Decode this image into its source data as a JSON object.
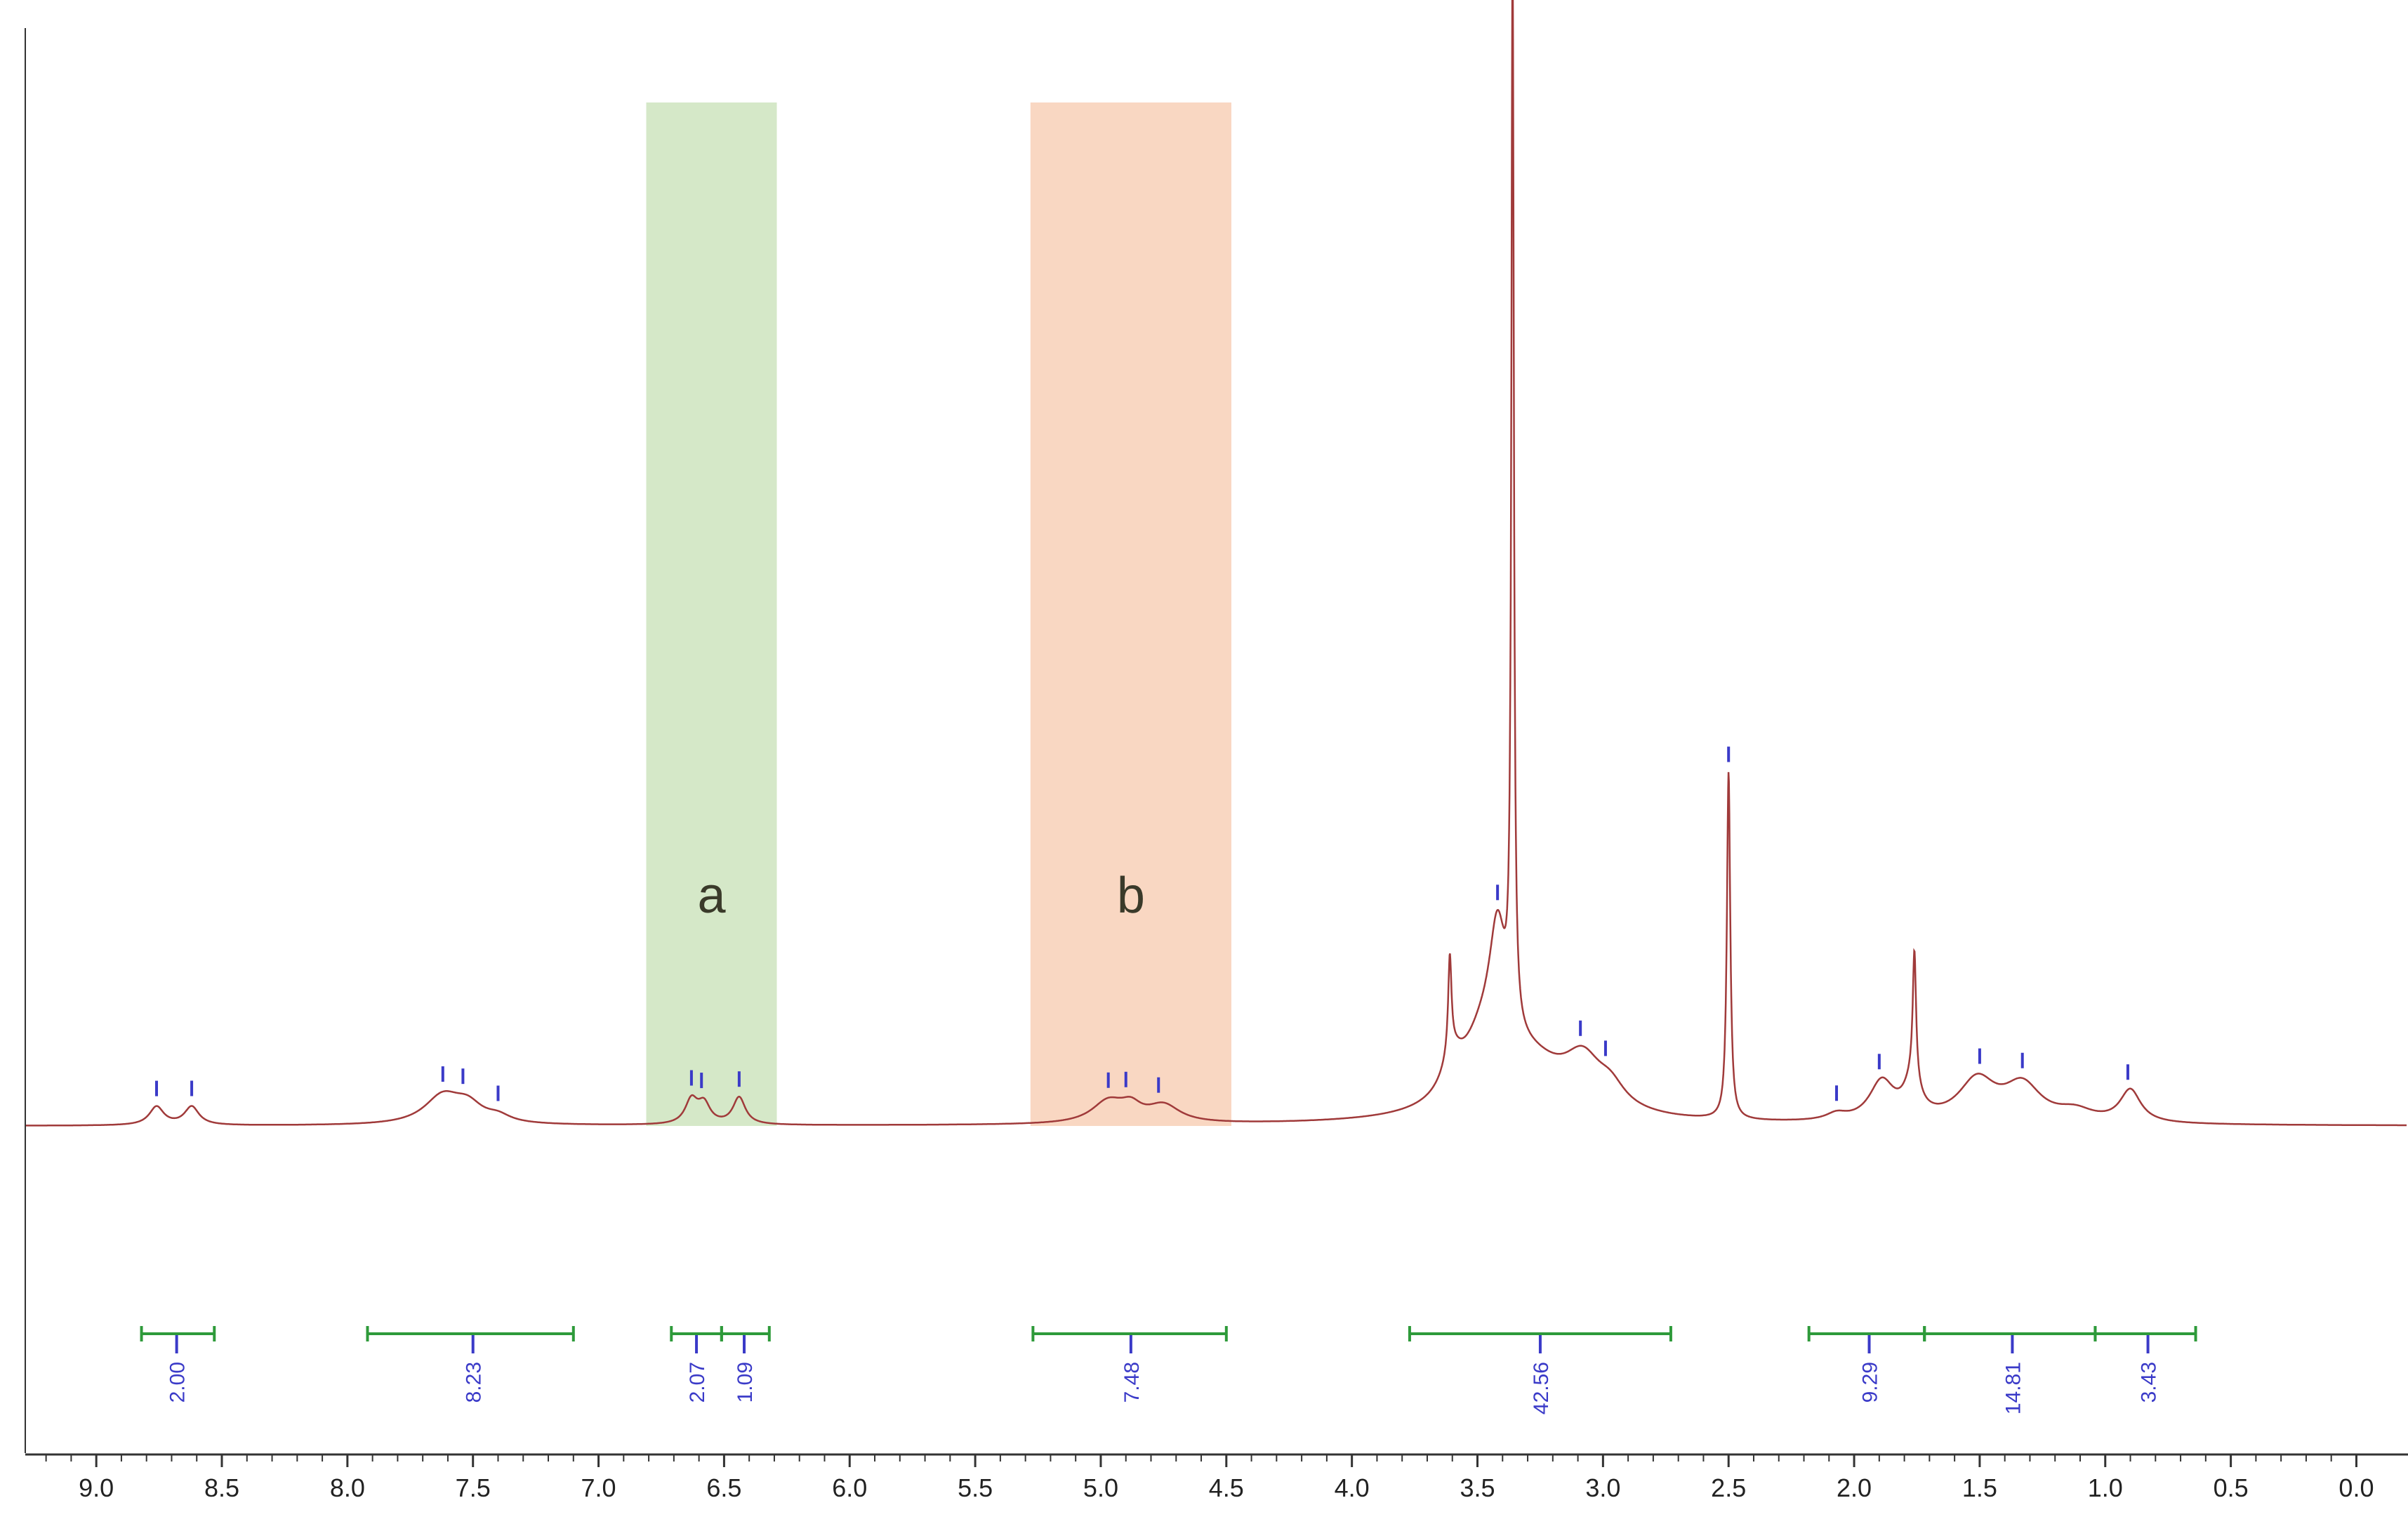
{
  "chart_data": {
    "type": "line",
    "title": "",
    "xlabel": "",
    "ylabel": "",
    "x_reversed": true,
    "xlim": [
      9.28,
      -0.2
    ],
    "x_ticks": [
      "9.0",
      "8.5",
      "8.0",
      "7.5",
      "7.0",
      "6.5",
      "6.0",
      "5.5",
      "5.0",
      "4.5",
      "4.0",
      "3.5",
      "3.0",
      "2.5",
      "2.0",
      "1.5",
      "1.0",
      "0.5",
      "0.0"
    ],
    "x_tick_values": [
      9.0,
      8.5,
      8.0,
      7.5,
      7.0,
      6.5,
      6.0,
      5.5,
      5.0,
      4.5,
      4.0,
      3.5,
      3.0,
      2.5,
      2.0,
      1.5,
      1.0,
      0.5,
      0.0
    ],
    "grid": false,
    "colors": {
      "spectrum": "#a03a3a",
      "peak_marker": "#3a3ac8",
      "integral": "#2e9a3a",
      "integral_text": "#3a3ac8",
      "region_a": "#d5e8c8",
      "region_b": "#f9d7c2",
      "axis": "#333333"
    },
    "regions": [
      {
        "label": "a",
        "from": 6.81,
        "to": 6.29,
        "color": "#d5e8c8"
      },
      {
        "label": "b",
        "from": 5.28,
        "to": 4.48,
        "color": "#f9d7c2"
      }
    ],
    "series": [
      {
        "peaks": [
          {
            "ppm": 8.76,
            "height": 0.017,
            "width": 0.035
          },
          {
            "ppm": 8.62,
            "height": 0.017,
            "width": 0.035
          },
          {
            "ppm": 7.62,
            "height": 0.026,
            "width": 0.09
          },
          {
            "ppm": 7.52,
            "height": 0.015,
            "width": 0.07
          },
          {
            "ppm": 7.4,
            "height": 0.006,
            "width": 0.06
          },
          {
            "ppm": 6.63,
            "height": 0.022,
            "width": 0.03
          },
          {
            "ppm": 6.58,
            "height": 0.018,
            "width": 0.03
          },
          {
            "ppm": 6.44,
            "height": 0.025,
            "width": 0.03
          },
          {
            "ppm": 4.97,
            "height": 0.02,
            "width": 0.08
          },
          {
            "ppm": 4.88,
            "height": 0.012,
            "width": 0.05
          },
          {
            "ppm": 4.75,
            "height": 0.016,
            "width": 0.08
          },
          {
            "ppm": 3.61,
            "height": 0.09,
            "width": 0.008
          },
          {
            "ppm": 3.6,
            "height": 0.03,
            "width": 0.05
          },
          {
            "ppm": 3.48,
            "height": 0.05,
            "width": 0.1
          },
          {
            "ppm": 3.42,
            "height": 0.11,
            "width": 0.04
          },
          {
            "ppm": 3.36,
            "height": 0.98,
            "width": 0.006
          },
          {
            "ppm": 3.3,
            "height": 0.05,
            "width": 0.2
          },
          {
            "ppm": 3.08,
            "height": 0.04,
            "width": 0.09
          },
          {
            "ppm": 2.97,
            "height": 0.018,
            "width": 0.07
          },
          {
            "ppm": 2.5,
            "height": 0.32,
            "width": 0.008
          },
          {
            "ppm": 2.07,
            "height": 0.006,
            "width": 0.05
          },
          {
            "ppm": 1.89,
            "height": 0.036,
            "width": 0.06
          },
          {
            "ppm": 1.76,
            "height": 0.12,
            "width": 0.008
          },
          {
            "ppm": 1.77,
            "height": 0.03,
            "width": 0.04
          },
          {
            "ppm": 1.51,
            "height": 0.038,
            "width": 0.09
          },
          {
            "ppm": 1.33,
            "height": 0.033,
            "width": 0.09
          },
          {
            "ppm": 1.12,
            "height": 0.01,
            "width": 0.09
          },
          {
            "ppm": 0.9,
            "height": 0.03,
            "width": 0.05
          }
        ]
      }
    ],
    "peak_picks": [
      8.76,
      8.62,
      7.62,
      7.54,
      7.4,
      6.63,
      6.59,
      6.44,
      4.97,
      4.9,
      4.77,
      3.42,
      3.36,
      3.09,
      2.99,
      2.5,
      2.07,
      1.9,
      1.5,
      1.33,
      0.91
    ],
    "integrals": [
      {
        "from": 8.82,
        "to": 8.53,
        "value": "2.00",
        "pos": 8.68
      },
      {
        "from": 7.92,
        "to": 7.1,
        "value": "8.23",
        "pos": 7.5
      },
      {
        "from": 6.71,
        "to": 6.51,
        "value": "2.07",
        "pos": 6.61
      },
      {
        "from": 6.51,
        "to": 6.32,
        "value": "1.09",
        "pos": 6.42
      },
      {
        "from": 5.27,
        "to": 4.5,
        "value": "7.48",
        "pos": 4.88
      },
      {
        "from": 3.77,
        "to": 2.73,
        "value": "42.56",
        "pos": 3.25
      },
      {
        "from": 2.18,
        "to": 1.72,
        "value": "9.29",
        "pos": 1.94
      },
      {
        "from": 1.72,
        "to": 1.04,
        "value": "14.81",
        "pos": 1.37
      },
      {
        "from": 1.04,
        "to": 0.64,
        "value": "3.43",
        "pos": 0.83
      }
    ]
  }
}
